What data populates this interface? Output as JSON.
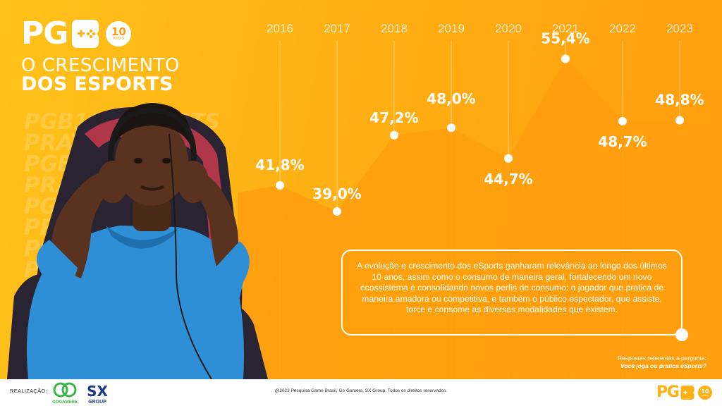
{
  "brand": {
    "logo_text": "PG",
    "badge_number": "10",
    "badge_sub": "ANOS"
  },
  "title": {
    "line1": "O CRESCIMENTO",
    "line2": "DOS ESPORTS"
  },
  "watermark_lines": [
    "PGB10 ESPORTS",
    "PRATICANTES",
    "PGB10 ESPORTS",
    "PRATICANTES",
    "PGB10 ESPORTS",
    "PRATICANTES",
    "PGB10 ESPORTS",
    "PRATICANTES",
    "PGB10 ESPORTS",
    "PRATICANTES"
  ],
  "chart_data": {
    "type": "area",
    "categories": [
      "2016",
      "2017",
      "2018",
      "2019",
      "2020",
      "2021",
      "2022",
      "2023"
    ],
    "values": [
      41.8,
      39.0,
      47.2,
      48.0,
      44.7,
      55.4,
      48.7,
      48.8
    ],
    "labels": [
      "41,8%",
      "39,0%",
      "47,2%",
      "48,0%",
      "44,7%",
      "55,4%",
      "48,7%",
      "48,8%"
    ],
    "grid": "vertical"
  },
  "description": "A evolução e crescimento dos eSports ganharam relevância ao longo dos últimos 10 anos, assim como o consumo de maneira geral, fortalecendo um novo ecossistema e consolidando novos perfis de consumo: o jogador que pratica de maneira amadora ou competitiva, e também o público espectador, que assiste, torce e consome as diversas modalidades que existem.",
  "note": {
    "line1": "Respostas referentes a pergunta:",
    "question": "Você joga ou pratica eSports?"
  },
  "footer": {
    "realizacao": "REALIZAÇÃO:",
    "gogamers_text": "GOGAMERS",
    "sx_text": "SX",
    "group_text": "GROUP",
    "copyright": "@2023 Pesquisa Game Brasil, Go Gamers, SX Group. Todos os direitos reservados."
  },
  "colors": {
    "background_start": "#ffc21a",
    "background_end": "#ff9c0d",
    "area_fill": "#ff9f0f",
    "accent": "#ffb014",
    "text": "#ffffff"
  }
}
